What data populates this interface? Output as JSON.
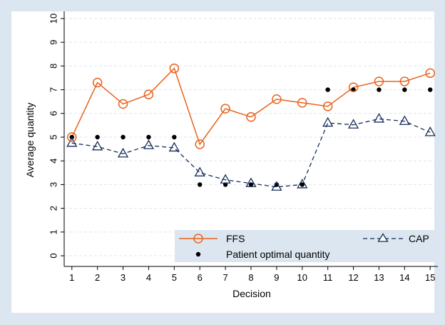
{
  "chart_data": {
    "type": "line",
    "title": "",
    "xlabel": "Decision",
    "ylabel": "Average quantity",
    "x": [
      1,
      2,
      3,
      4,
      5,
      6,
      7,
      8,
      9,
      10,
      11,
      12,
      13,
      14,
      15
    ],
    "xlim": [
      0.7,
      15.3
    ],
    "ylim": [
      -0.45,
      10.3
    ],
    "yticks": [
      0,
      1,
      2,
      3,
      4,
      5,
      6,
      7,
      8,
      9,
      10
    ],
    "grid": "horizontal dashed",
    "legend_position": "bottom-right",
    "series": [
      {
        "name": "FFS",
        "style": "solid line, hollow circle markers",
        "color": "#e8641e",
        "values": [
          5.0,
          7.3,
          6.4,
          6.8,
          7.9,
          4.7,
          6.2,
          5.85,
          6.6,
          6.45,
          6.3,
          7.1,
          7.35,
          7.35,
          7.7
        ]
      },
      {
        "name": "CAP",
        "style": "dashed line, hollow triangle markers",
        "color": "#1a2e5a",
        "values": [
          4.75,
          4.6,
          4.3,
          4.65,
          4.55,
          3.5,
          3.2,
          3.05,
          2.9,
          3.0,
          5.6,
          5.52,
          5.77,
          5.67,
          5.2
        ]
      },
      {
        "name": "Patient optimal quantity",
        "style": "filled dot markers",
        "color": "#000000",
        "values": [
          5,
          5,
          5,
          5,
          5,
          3,
          3,
          3,
          3,
          3,
          7,
          7,
          7,
          7,
          7
        ]
      }
    ]
  }
}
